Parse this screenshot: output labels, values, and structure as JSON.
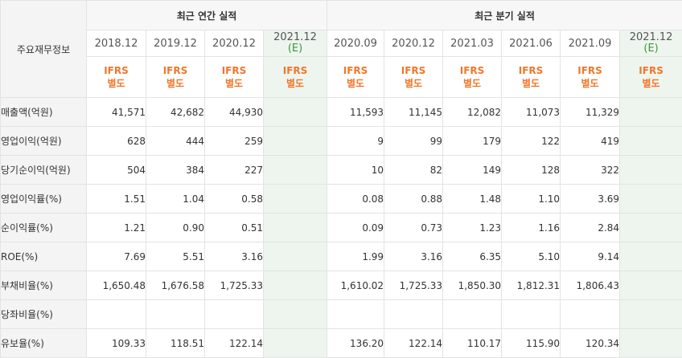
{
  "table": {
    "corner_label": "주요재무정보",
    "groups": [
      {
        "label": "최근 연간 실적"
      },
      {
        "label": "최근 분기 실적"
      }
    ],
    "periods": [
      {
        "label": "2018.12",
        "est": ""
      },
      {
        "label": "2019.12",
        "est": ""
      },
      {
        "label": "2020.12",
        "est": ""
      },
      {
        "label": "2021.12",
        "est": "(E)"
      },
      {
        "label": "2020.09",
        "est": ""
      },
      {
        "label": "2020.12",
        "est": ""
      },
      {
        "label": "2021.03",
        "est": ""
      },
      {
        "label": "2021.06",
        "est": ""
      },
      {
        "label": "2021.09",
        "est": ""
      },
      {
        "label": "2021.12",
        "est": "(E)"
      }
    ],
    "ifrs_line1": "IFRS",
    "ifrs_line2": "별도",
    "rows": [
      {
        "label": "매출액(억원)",
        "values": [
          "41,571",
          "42,682",
          "44,930",
          "",
          "11,593",
          "11,145",
          "12,082",
          "11,073",
          "11,329",
          ""
        ]
      },
      {
        "label": "영업이익(억원)",
        "values": [
          "628",
          "444",
          "259",
          "",
          "9",
          "99",
          "179",
          "122",
          "419",
          ""
        ]
      },
      {
        "label": "당기순이익(억원)",
        "values": [
          "504",
          "384",
          "227",
          "",
          "10",
          "82",
          "149",
          "128",
          "322",
          ""
        ]
      },
      {
        "label": "영업이익률(%)",
        "values": [
          "1.51",
          "1.04",
          "0.58",
          "",
          "0.08",
          "0.88",
          "1.48",
          "1.10",
          "3.69",
          ""
        ]
      },
      {
        "label": "순이익률(%)",
        "values": [
          "1.21",
          "0.90",
          "0.51",
          "",
          "0.09",
          "0.73",
          "1.23",
          "1.16",
          "2.84",
          ""
        ]
      },
      {
        "label": "ROE(%)",
        "values": [
          "7.69",
          "5.51",
          "3.16",
          "",
          "1.99",
          "3.16",
          "6.35",
          "5.10",
          "9.14",
          ""
        ]
      },
      {
        "label": "부채비율(%)",
        "values": [
          "1,650.48",
          "1,676.58",
          "1,725.33",
          "",
          "1,610.02",
          "1,725.33",
          "1,850.30",
          "1,812.31",
          "1,806.43",
          ""
        ]
      },
      {
        "label": "당좌비율(%)",
        "values": [
          "",
          "",
          "",
          "",
          "",
          "",
          "",
          "",
          "",
          ""
        ]
      },
      {
        "label": "유보율(%)",
        "values": [
          "109.33",
          "118.51",
          "122.14",
          "",
          "136.20",
          "122.14",
          "110.17",
          "115.90",
          "120.34",
          ""
        ]
      }
    ]
  }
}
